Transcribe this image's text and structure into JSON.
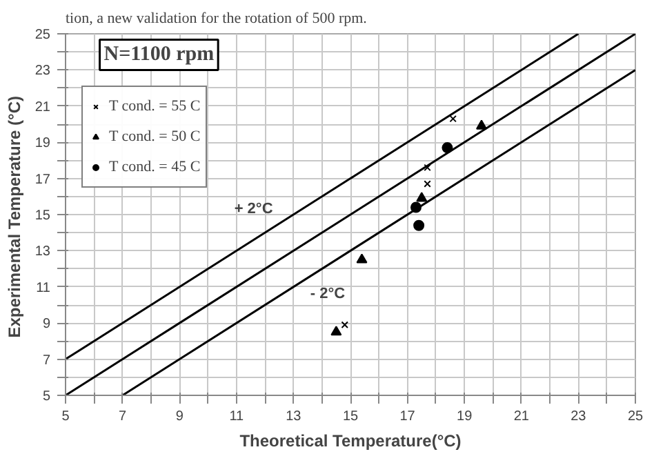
{
  "chart_data": {
    "type": "scatter",
    "title": "N=1100 rpm",
    "xlabel": "Theoretical Temperature(°C)",
    "ylabel": "Experimental  Temperature (°C)",
    "xlim": [
      5,
      25
    ],
    "ylim": [
      5,
      25
    ],
    "xticks": [
      5,
      {
        "value": 6,
        "label": null
      },
      7,
      {
        "value": 8,
        "label": null
      },
      9,
      {
        "value": 10,
        "label": null
      },
      11,
      {
        "value": 12,
        "label": null
      },
      13,
      {
        "value": 14,
        "label": null
      },
      15,
      {
        "value": 16,
        "label": null
      },
      17,
      {
        "value": 18,
        "label": null
      },
      19,
      {
        "value": 20,
        "label": null
      },
      21,
      {
        "value": 22,
        "label": null
      },
      23,
      {
        "value": 24,
        "label": null
      },
      25
    ],
    "yticks": [
      5,
      {
        "value": 6,
        "label": null
      },
      7,
      {
        "value": 8,
        "label": null
      },
      9,
      {
        "value": 10,
        "label": null
      },
      11,
      {
        "value": 12,
        "label": null
      },
      13,
      {
        "value": 14,
        "label": null
      },
      15,
      {
        "value": 16,
        "label": null
      },
      17,
      {
        "value": 18,
        "label": null
      },
      19,
      {
        "value": 20,
        "label": null
      },
      21,
      {
        "value": 22,
        "label": null
      },
      23,
      {
        "value": 24,
        "label": null
      },
      25
    ],
    "grid": true,
    "legend": "top left",
    "series": [
      {
        "name": "T cond. = 55 C",
        "color": "#000000",
        "marker": "cross",
        "x": [
          18.6,
          17.7,
          17.7,
          14.8
        ],
        "values": [
          20.3,
          17.6,
          16.7,
          8.9
        ]
      },
      {
        "name": "T cond. = 50 C",
        "color": "#000000",
        "marker": "triangle",
        "x": [
          19.6,
          17.5,
          15.4,
          14.5
        ],
        "values": [
          19.9,
          15.9,
          12.5,
          8.5
        ]
      },
      {
        "name": "T cond. = 45 C",
        "color": "#000000",
        "marker": "circle",
        "x": [
          18.4,
          17.3,
          17.4
        ],
        "values": [
          18.7,
          15.4,
          14.4
        ]
      },
      {
        "type": "line",
        "color": "#000000",
        "x": [
          5,
          23
        ],
        "values": [
          7,
          25
        ]
      },
      {
        "type": "line",
        "color": "#000000",
        "x": [
          5,
          25
        ],
        "values": [
          5,
          25
        ]
      },
      {
        "type": "line",
        "color": "#000000",
        "x": [
          7,
          25
        ],
        "values": [
          5,
          23
        ]
      }
    ],
    "annotations": [
      "tion, a new validation for the rotation of 500 rpm.",
      "+ 2°C",
      "- 2°C"
    ]
  }
}
